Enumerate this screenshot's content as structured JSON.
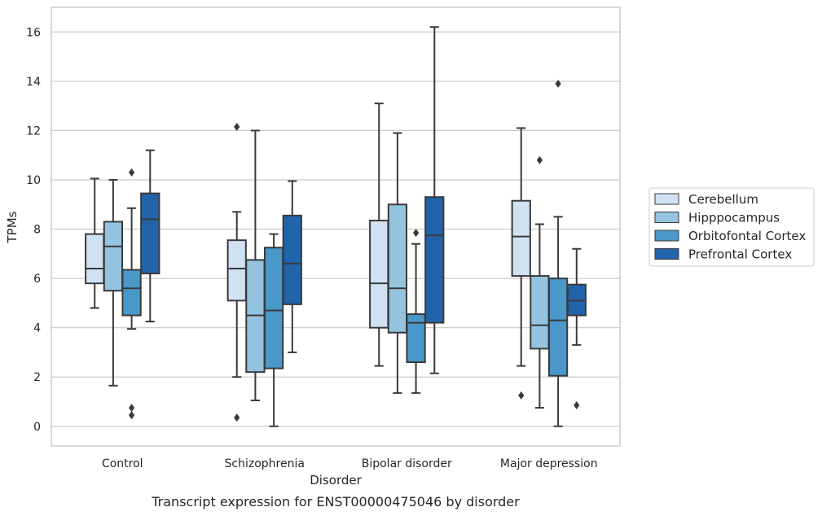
{
  "chart_data": {
    "type": "box",
    "caption": "Transcript expression for ENST00000475046 by disorder",
    "xlabel": "Disorder",
    "ylabel": "TPMs",
    "ylim": [
      -0.8,
      17
    ],
    "yticks": [
      0,
      2,
      4,
      6,
      8,
      10,
      12,
      14,
      16
    ],
    "grid": true,
    "legend_position": "right",
    "categories": [
      "Control",
      "Schizophrenia",
      "Bipolar disorder",
      "Major depression"
    ],
    "series": [
      {
        "name": "Cerebellum",
        "color": "#d0e1f2",
        "boxes": [
          {
            "whisker_low": 4.8,
            "q1": 5.8,
            "median": 6.4,
            "q3": 7.8,
            "whisker_high": 10.05,
            "outliers": []
          },
          {
            "whisker_low": 2.0,
            "q1": 5.1,
            "median": 6.4,
            "q3": 7.55,
            "whisker_high": 8.7,
            "outliers": [
              12.15,
              0.35
            ]
          },
          {
            "whisker_low": 2.45,
            "q1": 4.0,
            "median": 5.8,
            "q3": 8.35,
            "whisker_high": 13.1,
            "outliers": []
          },
          {
            "whisker_low": 2.45,
            "q1": 6.1,
            "median": 7.7,
            "q3": 9.15,
            "whisker_high": 12.1,
            "outliers": [
              1.25
            ]
          }
        ]
      },
      {
        "name": "Hipppocampus",
        "color": "#94c4df",
        "boxes": [
          {
            "whisker_low": 1.65,
            "q1": 5.5,
            "median": 7.3,
            "q3": 8.3,
            "whisker_high": 10.0,
            "outliers": []
          },
          {
            "whisker_low": 1.05,
            "q1": 2.2,
            "median": 4.5,
            "q3": 6.75,
            "whisker_high": 12.0,
            "outliers": []
          },
          {
            "whisker_low": 1.35,
            "q1": 3.8,
            "median": 5.6,
            "q3": 9.0,
            "whisker_high": 11.9,
            "outliers": []
          },
          {
            "whisker_low": 0.75,
            "q1": 3.15,
            "median": 4.1,
            "q3": 6.1,
            "whisker_high": 8.2,
            "outliers": [
              10.8
            ]
          }
        ]
      },
      {
        "name": "Orbitofontal Cortex",
        "color": "#4a98c9",
        "boxes": [
          {
            "whisker_low": 3.95,
            "q1": 4.5,
            "median": 5.6,
            "q3": 6.35,
            "whisker_high": 8.85,
            "outliers": [
              10.3,
              0.75,
              0.45
            ]
          },
          {
            "whisker_low": 0.0,
            "q1": 2.35,
            "median": 4.7,
            "q3": 7.25,
            "whisker_high": 7.8,
            "outliers": []
          },
          {
            "whisker_low": 1.35,
            "q1": 2.6,
            "median": 4.2,
            "q3": 4.55,
            "whisker_high": 7.4,
            "outliers": [
              7.85
            ]
          },
          {
            "whisker_low": 0.0,
            "q1": 2.05,
            "median": 4.3,
            "q3": 6.0,
            "whisker_high": 8.5,
            "outliers": [
              13.9
            ]
          }
        ]
      },
      {
        "name": "Prefrontal Cortex",
        "color": "#2164ab",
        "boxes": [
          {
            "whisker_low": 4.25,
            "q1": 6.2,
            "median": 8.4,
            "q3": 9.45,
            "whisker_high": 11.2,
            "outliers": []
          },
          {
            "whisker_low": 3.0,
            "q1": 4.95,
            "median": 6.6,
            "q3": 8.55,
            "whisker_high": 9.95,
            "outliers": []
          },
          {
            "whisker_low": 2.15,
            "q1": 4.2,
            "median": 7.75,
            "q3": 9.3,
            "whisker_high": 16.2,
            "outliers": []
          },
          {
            "whisker_low": 3.3,
            "q1": 4.5,
            "median": 5.1,
            "q3": 5.75,
            "whisker_high": 7.2,
            "outliers": [
              0.85
            ]
          }
        ]
      }
    ]
  }
}
